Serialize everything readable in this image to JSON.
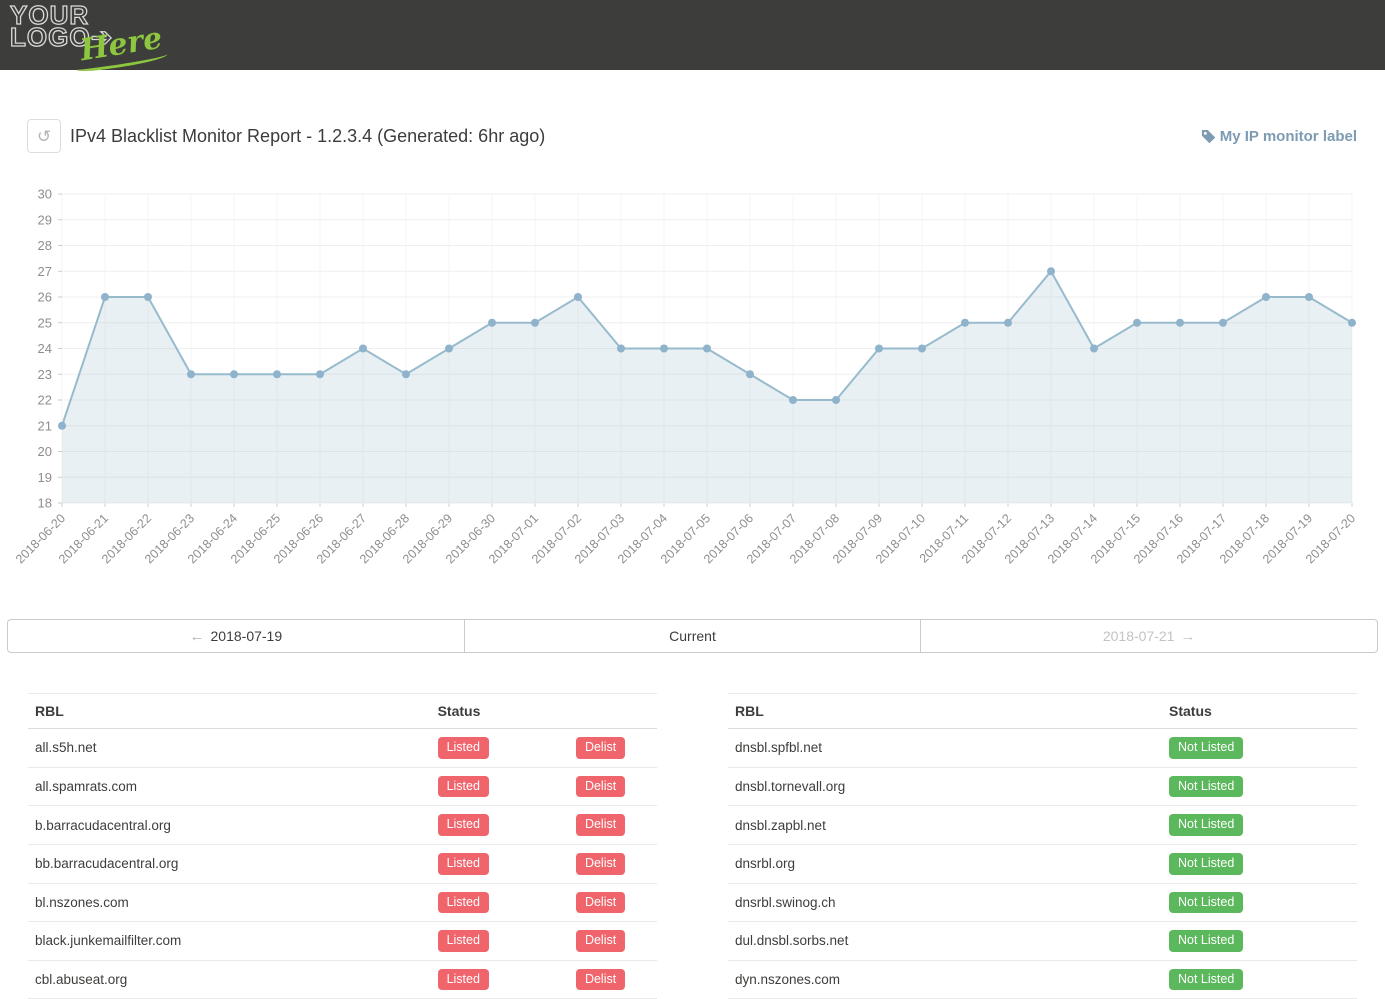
{
  "header": {
    "logo_line1": "YOUR",
    "logo_line2": "LOGO",
    "logo_arrow": "➔",
    "logo_script": "Here"
  },
  "report": {
    "title": "IPv4 Blacklist Monitor Report - 1.2.3.4 (Generated: 6hr ago)",
    "monitor_label": "My IP monitor label",
    "refresh_icon": "↺"
  },
  "chart_data": {
    "type": "area",
    "title": "",
    "xlabel": "",
    "ylabel": "",
    "x": [
      "2018-06-20",
      "2018-06-21",
      "2018-06-22",
      "2018-06-23",
      "2018-06-24",
      "2018-06-25",
      "2018-06-26",
      "2018-06-27",
      "2018-06-28",
      "2018-06-29",
      "2018-06-30",
      "2018-07-01",
      "2018-07-02",
      "2018-07-03",
      "2018-07-04",
      "2018-07-05",
      "2018-07-06",
      "2018-07-07",
      "2018-07-08",
      "2018-07-09",
      "2018-07-10",
      "2018-07-11",
      "2018-07-12",
      "2018-07-13",
      "2018-07-14",
      "2018-07-15",
      "2018-07-16",
      "2018-07-17",
      "2018-07-18",
      "2018-07-19",
      "2018-07-20"
    ],
    "values": [
      21,
      26,
      26,
      23,
      23,
      23,
      23,
      24,
      23,
      24,
      25,
      25,
      26,
      24,
      24,
      24,
      23,
      22,
      22,
      24,
      24,
      25,
      25,
      27,
      24,
      25,
      25,
      25,
      26,
      26,
      25
    ],
    "ylim": [
      18,
      30
    ],
    "y_ticks": [
      18,
      19,
      20,
      21,
      22,
      23,
      24,
      25,
      26,
      27,
      28,
      29,
      30
    ],
    "grid": true,
    "legend": "none",
    "line_color": "#97bbcd",
    "fill_color": "rgba(151,187,205,0.22)",
    "point_color": "#8fb3ca",
    "axis_text_color": "#8e8e8e",
    "grid_color_h": "#efefef",
    "grid_color_v": "#f5f5f5",
    "tick_color": "#cccccc"
  },
  "pagination": {
    "prev_label": "2018-07-19",
    "current_label": "Current",
    "next_label": "2018-07-21",
    "arrow_left": "←",
    "arrow_right": "→"
  },
  "tables": {
    "listed": {
      "headers": [
        "RBL",
        "Status",
        ""
      ],
      "rows": [
        {
          "rbl": "all.s5h.net",
          "status": "Listed",
          "action": "Delist"
        },
        {
          "rbl": "all.spamrats.com",
          "status": "Listed",
          "action": "Delist"
        },
        {
          "rbl": "b.barracudacentral.org",
          "status": "Listed",
          "action": "Delist"
        },
        {
          "rbl": "bb.barracudacentral.org",
          "status": "Listed",
          "action": "Delist"
        },
        {
          "rbl": "bl.nszones.com",
          "status": "Listed",
          "action": "Delist"
        },
        {
          "rbl": "black.junkemailfilter.com",
          "status": "Listed",
          "action": "Delist"
        },
        {
          "rbl": "cbl.abuseat.org",
          "status": "Listed",
          "action": "Delist"
        }
      ]
    },
    "not_listed": {
      "headers": [
        "RBL",
        "Status"
      ],
      "rows": [
        {
          "rbl": "dnsbl.spfbl.net",
          "status": "Not Listed"
        },
        {
          "rbl": "dnsbl.tornevall.org",
          "status": "Not Listed"
        },
        {
          "rbl": "dnsbl.zapbl.net",
          "status": "Not Listed"
        },
        {
          "rbl": "dnsrbl.org",
          "status": "Not Listed"
        },
        {
          "rbl": "dnsrbl.swinog.ch",
          "status": "Not Listed"
        },
        {
          "rbl": "dul.dnsbl.sorbs.net",
          "status": "Not Listed"
        },
        {
          "rbl": "dyn.nszones.com",
          "status": "Not Listed"
        }
      ]
    }
  },
  "colors": {
    "header_bg": "#3d3d3b",
    "logo_green": "#8dc63f",
    "accent_blue": "#7d9bb3",
    "badge_red": "#f0646b",
    "badge_green": "#5cb85c"
  }
}
